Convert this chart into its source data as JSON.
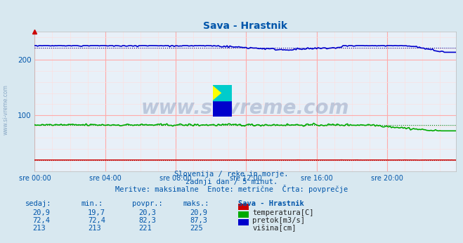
{
  "title": "Sava - Hrastnik",
  "bg_color": "#d8e8f0",
  "plot_bg_color": "#e8f0f8",
  "grid_color_major": "#ffaaaa",
  "grid_color_minor": "#ffdddd",
  "xlabel_ticks": [
    "sre 00:00",
    "sre 04:00",
    "sre 08:00",
    "sre 12:00",
    "sre 16:00",
    "sre 20:00"
  ],
  "ylim": [
    0,
    250
  ],
  "xlim": [
    0,
    287
  ],
  "subtitle_lines": [
    "Slovenija / reke in morje.",
    "zadnji dan / 5 minut.",
    "Meritve: maksimalne  Enote: metrične  Črta: povprečje"
  ],
  "table_headers": [
    "sedaj:",
    "min.:",
    "povpr.:",
    "maks.:"
  ],
  "table_col5_header": "Sava - Hrastnik",
  "table_rows": [
    [
      "20,9",
      "19,7",
      "20,3",
      "20,9",
      "temperatura[C]",
      "#cc0000"
    ],
    [
      "72,4",
      "72,4",
      "82,3",
      "87,3",
      "pretok[m3/s]",
      "#00aa00"
    ],
    [
      "213",
      "213",
      "221",
      "225",
      "višina[cm]",
      "#0000cc"
    ]
  ],
  "watermark": "www.si-vreme.com",
  "n_points": 288,
  "temperatura_mean": 20.3,
  "temperatura_min": 19.7,
  "temperatura_max": 20.9,
  "pretok_mean": 82.3,
  "pretok_min": 72.4,
  "pretok_max": 87.3,
  "visina_mean": 221,
  "visina_min": 213,
  "visina_max": 225
}
